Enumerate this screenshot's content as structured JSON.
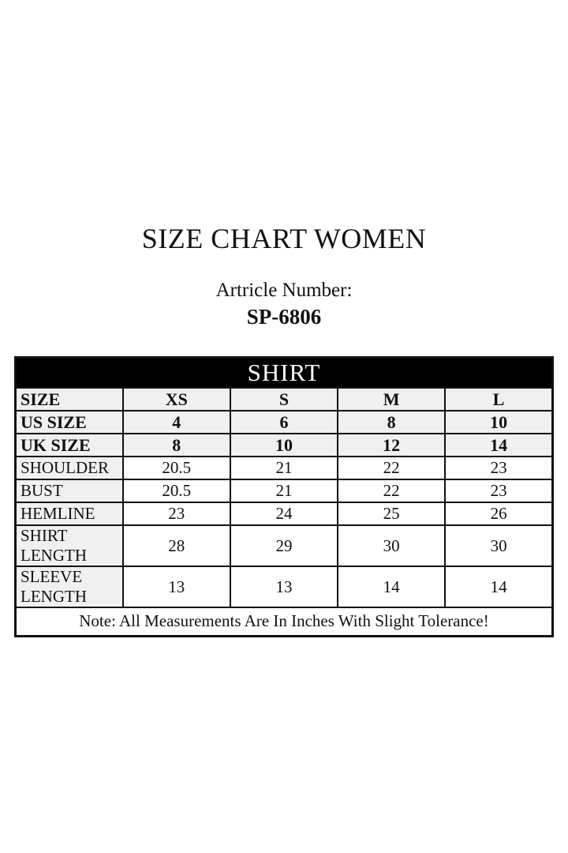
{
  "page": {
    "title": "SIZE CHART WOMEN",
    "article_label": "Artricle Number:",
    "article_number": "SP-6806"
  },
  "table": {
    "header": "SHIRT",
    "columns": [
      "SIZE",
      "XS",
      "S",
      "M",
      "L"
    ],
    "rows": [
      {
        "label": "SIZE",
        "group": "size",
        "values": [
          "XS",
          "S",
          "M",
          "L"
        ]
      },
      {
        "label": "US SIZE",
        "group": "size",
        "values": [
          "4",
          "6",
          "8",
          "10"
        ]
      },
      {
        "label": "UK SIZE",
        "group": "size",
        "values": [
          "8",
          "10",
          "12",
          "14"
        ]
      },
      {
        "label": "SHOULDER",
        "group": "measurement",
        "values": [
          "20.5",
          "21",
          "22",
          "23"
        ]
      },
      {
        "label": "BUST",
        "group": "measurement",
        "values": [
          "20.5",
          "21",
          "22",
          "23"
        ]
      },
      {
        "label": "HEMLINE",
        "group": "measurement",
        "values": [
          "23",
          "24",
          "25",
          "26"
        ]
      },
      {
        "label": "SHIRT LENGTH",
        "group": "measurement",
        "values": [
          "28",
          "29",
          "30",
          "30"
        ]
      },
      {
        "label": "SLEEVE LENGTH",
        "group": "measurement",
        "values": [
          "13",
          "13",
          "14",
          "14"
        ]
      }
    ],
    "note": "Note: All Measurements Are In Inches With Slight Tolerance!"
  },
  "colors": {
    "header_bg": "#000000",
    "header_text": "#ffffff",
    "shaded_row_bg": "#f0f0f0",
    "cell_bg": "#ffffff",
    "border": "#111111",
    "text": "#111111",
    "page_bg": "#ffffff"
  }
}
